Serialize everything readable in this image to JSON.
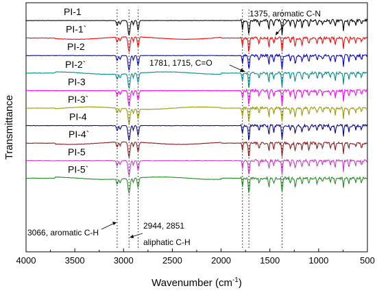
{
  "chart_data": {
    "type": "line",
    "title": "",
    "xlabel": "Wavenumber (cm",
    "xlabel_sup": "-1",
    "xlabel_tail": ")",
    "ylabel": "Transmittance",
    "xlim": [
      4000,
      500
    ],
    "x_reversed": true,
    "xticks": [
      4000,
      3500,
      3000,
      2500,
      2000,
      1500,
      1000,
      500
    ],
    "yticks_shown": false,
    "grid": false,
    "legend": "inline labels on each curve",
    "reference_lines_cm1": [
      3066,
      2944,
      2851,
      1781,
      1715,
      1375
    ],
    "series": [
      {
        "name": "PI-1",
        "color": "#000000"
      },
      {
        "name": "PI-1`",
        "color": "#ff0000"
      },
      {
        "name": "PI-2",
        "color": "#0000cc"
      },
      {
        "name": "PI-2`",
        "color": "#008b8b"
      },
      {
        "name": "PI-3",
        "color": "#ff00ff"
      },
      {
        "name": "PI-3`",
        "color": "#999900"
      },
      {
        "name": "PI-4",
        "color": "#00008b"
      },
      {
        "name": "PI-4`",
        "color": "#8b1a1a"
      },
      {
        "name": "PI-5",
        "color": "#cc33cc"
      },
      {
        "name": "PI-5`",
        "color": "#228b22"
      }
    ],
    "annotations": [
      "1375, aromatic C-N",
      "1781, 1715, C=O",
      "3066, aromatic C-H",
      "2944, 2851",
      "aliphatic C-H"
    ]
  }
}
